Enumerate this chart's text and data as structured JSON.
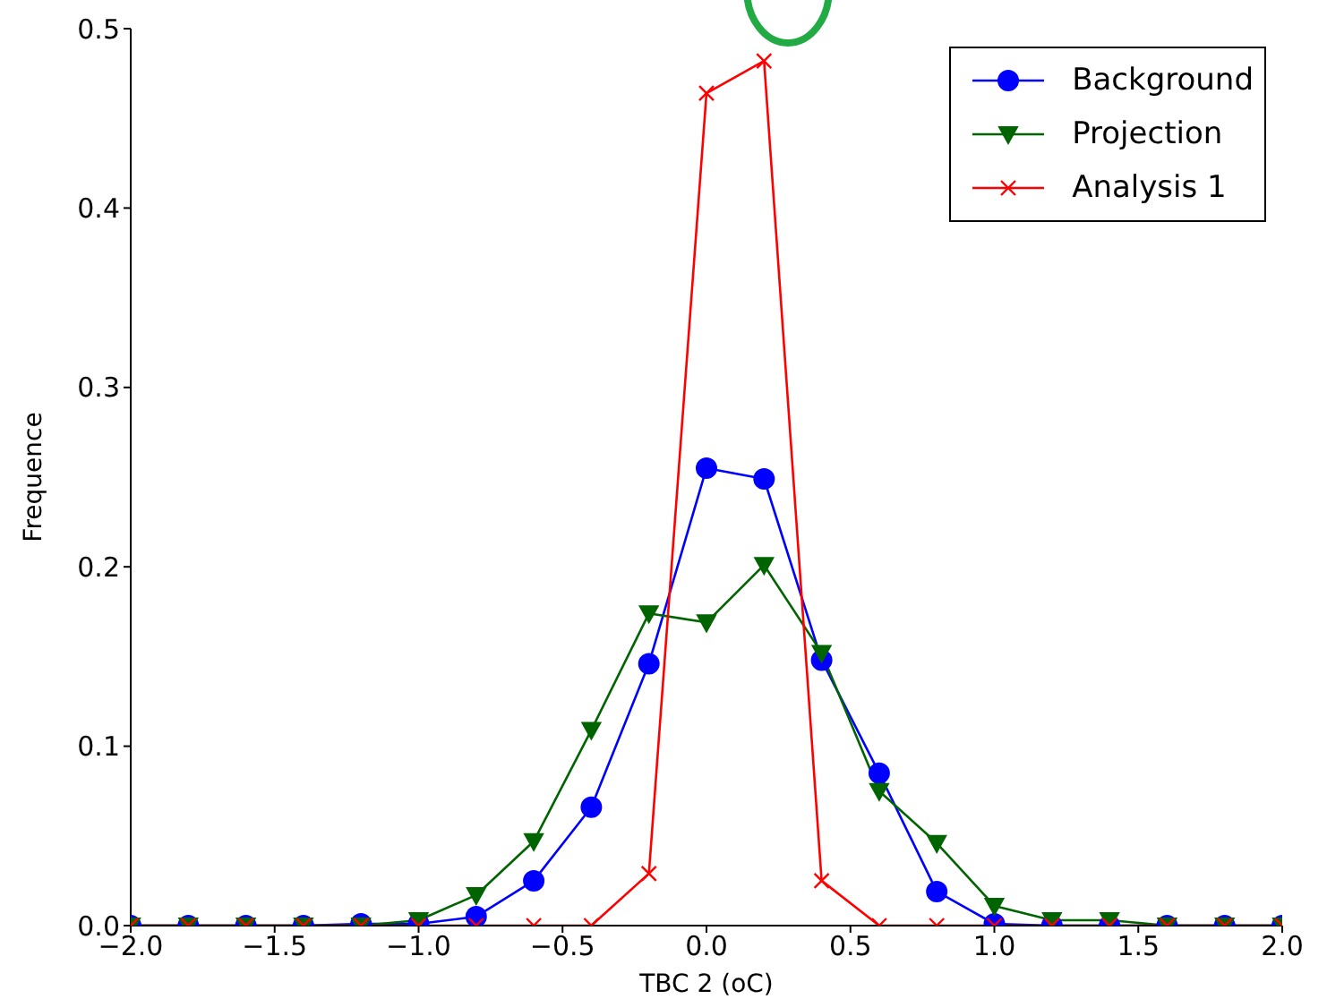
{
  "chart_data": {
    "type": "line",
    "xlabel": "TBC 2 (oC)",
    "ylabel": "Frequence",
    "x": [
      -2.0,
      -1.8,
      -1.6,
      -1.4,
      -1.2,
      -1.0,
      -0.8,
      -0.6,
      -0.4,
      -0.2,
      0.0,
      0.2,
      0.4,
      0.6,
      0.8,
      1.0,
      1.2,
      1.4,
      1.6,
      1.8,
      2.0
    ],
    "series": [
      {
        "name": "Background",
        "color": "#0000ff",
        "marker": "circle",
        "values": [
          0,
          0,
          0,
          0,
          0.001,
          0.001,
          0.005,
          0.025,
          0.066,
          0.146,
          0.255,
          0.249,
          0.148,
          0.085,
          0.019,
          0.001,
          0,
          0,
          0,
          0,
          0
        ]
      },
      {
        "name": "Projection",
        "color": "#006400",
        "marker": "triangle",
        "values": [
          0,
          0,
          0,
          0,
          0,
          0.003,
          0.017,
          0.047,
          0.109,
          0.174,
          0.169,
          0.201,
          0.152,
          0.075,
          0.046,
          0.011,
          0.003,
          0.003,
          0,
          0,
          0
        ]
      },
      {
        "name": "Analysis 1",
        "color": "#ff0000",
        "marker": "cross",
        "values": [
          0,
          0,
          0,
          0,
          0,
          0,
          0,
          0,
          0,
          0.029,
          0.464,
          0.482,
          0.025,
          0,
          0,
          0,
          0,
          0,
          0,
          0,
          0
        ]
      }
    ],
    "xlim": [
      -2.0,
      2.0
    ],
    "xticks": [
      {
        "value": -2.0,
        "label": "−2.0"
      },
      {
        "value": -1.5,
        "label": "−1.5"
      },
      {
        "value": -1.0,
        "label": "−1.0"
      },
      {
        "value": -0.5,
        "label": "−0.5"
      },
      {
        "value": 0.0,
        "label": "0.0"
      },
      {
        "value": 0.5,
        "label": "0.5"
      },
      {
        "value": 1.0,
        "label": "1.0"
      },
      {
        "value": 1.5,
        "label": "1.5"
      },
      {
        "value": 2.0,
        "label": "2.0"
      }
    ],
    "ylim": [
      0,
      0.5
    ],
    "yticks": [
      {
        "value": 0,
        "label": "0.0"
      },
      {
        "value": 0.1,
        "label": "0.1"
      },
      {
        "value": 0.2,
        "label": "0.2"
      },
      {
        "value": 0.3,
        "label": "0.3"
      },
      {
        "value": 0.4,
        "label": "0.4"
      },
      {
        "value": 0.5,
        "label": "0.5"
      }
    ],
    "grid": false,
    "legend": "top right"
  }
}
